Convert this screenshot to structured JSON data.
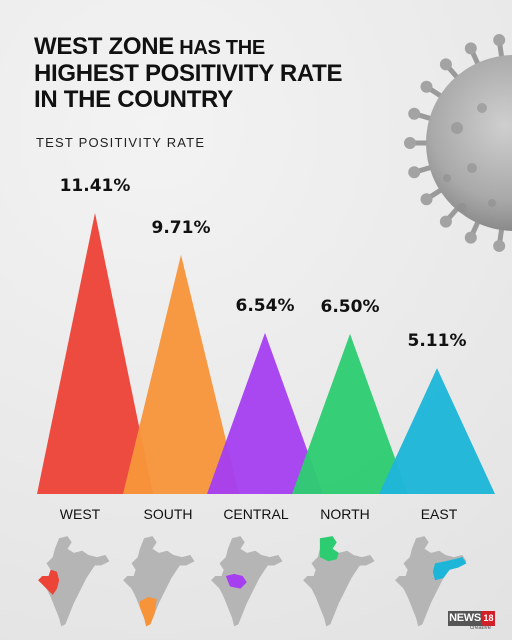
{
  "headline": {
    "part1": "WEST ZONE",
    "part2": " HAS THE",
    "line2": "HIGHEST POSITIVITY RATE",
    "line3": "IN THE COUNTRY"
  },
  "chart_data": {
    "type": "bar",
    "title": "TEST POSITIVITY RATE",
    "categories": [
      "WEST",
      "SOUTH",
      "CENTRAL",
      "NORTH",
      "EAST"
    ],
    "values": [
      11.41,
      9.71,
      6.54,
      6.5,
      5.11
    ],
    "value_labels": [
      "11.41%",
      "9.71%",
      "6.54%",
      "6.50%",
      "5.11%"
    ],
    "colors": [
      "#ec4437",
      "#f7943a",
      "#a63ff0",
      "#2ecc71",
      "#1eb6d8"
    ],
    "ylim": [
      0,
      11.41
    ],
    "grid": false
  },
  "maps": {
    "base_color": "#b5b5b5",
    "highlight_colors": [
      "#ec4437",
      "#f7943a",
      "#a63ff0",
      "#2ecc71",
      "#1eb6d8"
    ]
  },
  "logo": {
    "brand": "NEWS",
    "number": "18",
    "sub": "creative"
  }
}
